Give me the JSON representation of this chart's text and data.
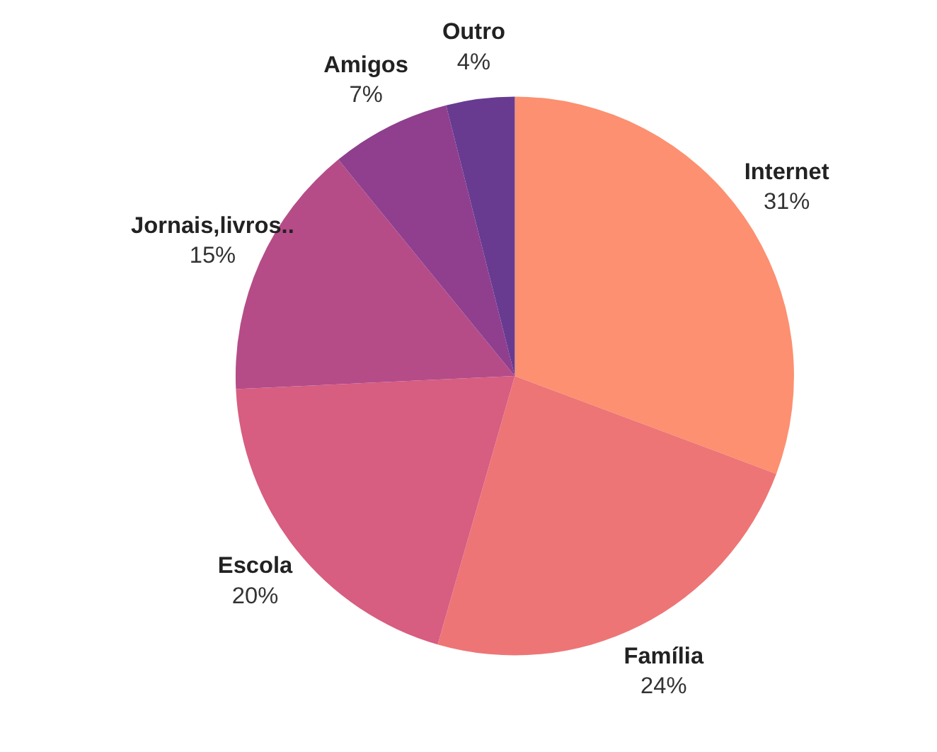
{
  "chart_data": {
    "type": "pie",
    "categories": [
      "Internet",
      "Família",
      "Escola",
      "Jornais,livros..",
      "Amigos",
      "Outro"
    ],
    "values": [
      31,
      24,
      20,
      15,
      7,
      4
    ],
    "value_labels": [
      "31%",
      "24%",
      "20%",
      "15%",
      "7%",
      "4%"
    ],
    "colors": [
      "#fc9070",
      "#ee7576",
      "#d75d81",
      "#b54c88",
      "#8f3f8e",
      "#683b91"
    ]
  }
}
